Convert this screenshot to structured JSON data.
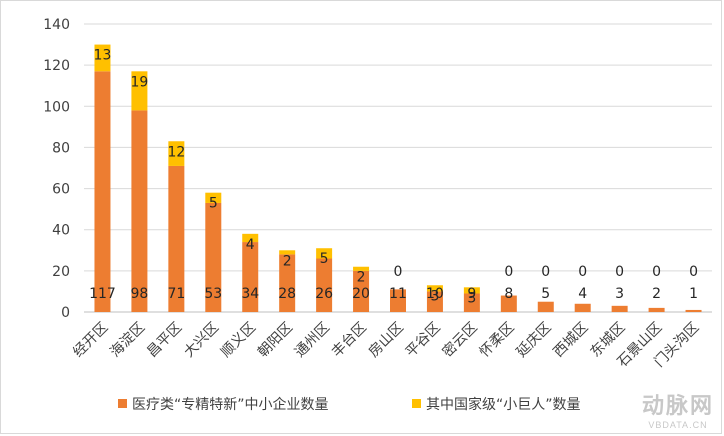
{
  "chart_data": {
    "type": "bar",
    "stacked": true,
    "categories": [
      "经开区",
      "海淀区",
      "昌平区",
      "大兴区",
      "顺义区",
      "朝阳区",
      "通州区",
      "丰台区",
      "房山区",
      "平谷区",
      "密云区",
      "怀柔区",
      "延庆区",
      "西城区",
      "东城区",
      "石景山区",
      "门头沟区"
    ],
    "series": [
      {
        "name": "医疗类“专精特新”中小企业数量",
        "color": "#ed7d31",
        "values": [
          117,
          98,
          71,
          53,
          34,
          28,
          26,
          20,
          11,
          10,
          9,
          8,
          5,
          4,
          3,
          2,
          1
        ]
      },
      {
        "name": "其中国家级“小巨人”数量",
        "color": "#ffc000",
        "values": [
          13,
          19,
          12,
          5,
          4,
          2,
          5,
          2,
          0,
          3,
          3,
          0,
          0,
          0,
          0,
          0,
          0
        ]
      }
    ],
    "ylim": [
      0,
      140
    ],
    "yticks": [
      0,
      20,
      40,
      60,
      80,
      100,
      120,
      140
    ],
    "grid": true,
    "legend": "bottom"
  },
  "watermark": {
    "brand": "动脉网",
    "site": "VBDATA.CN"
  }
}
